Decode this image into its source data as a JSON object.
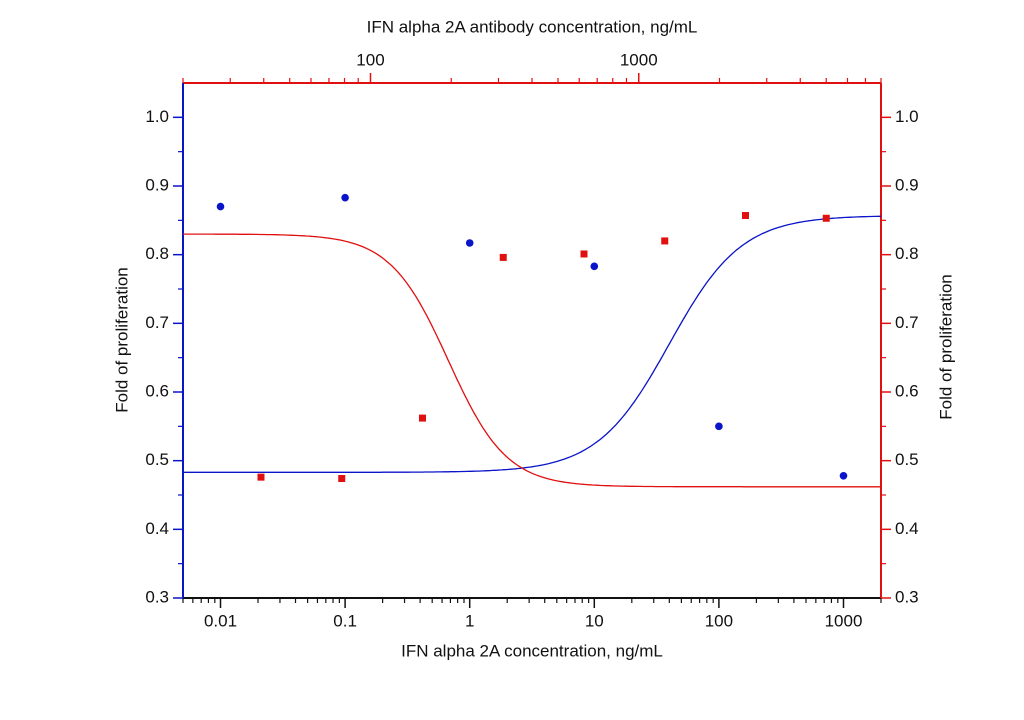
{
  "chart_data": {
    "type": "scatter",
    "xlabel": "IFN alpha 2A concentration, ng/mL",
    "x2label": "IFN alpha 2A antibody concentration, ng/mL",
    "ylabel": "Fold of proliferation",
    "y2label": "Fold of proliferation",
    "xscale": "log",
    "x2scale": "log",
    "xlim": [
      0.005,
      2000
    ],
    "xticks": [
      0.01,
      0.1,
      1,
      10,
      100,
      1000
    ],
    "x2lim": [
      20,
      8000
    ],
    "x2ticks": [
      100,
      1000
    ],
    "ylim": [
      0.3,
      1.05
    ],
    "yticks": [
      0.3,
      0.4,
      0.5,
      0.6,
      0.7,
      0.8,
      0.9,
      {
        "value": 1,
        "label": "1.0"
      }
    ],
    "y2lim": [
      0.3,
      1.05
    ],
    "y2ticks": [
      0.3,
      0.4,
      0.5,
      0.6,
      0.7,
      0.8,
      0.9,
      {
        "value": 1,
        "label": "1.0"
      }
    ],
    "series": [
      {
        "color": "#0a14c8",
        "marker": "circle",
        "x": [
          0.01,
          0.1,
          1,
          10,
          100,
          1000
        ],
        "values": [
          0.87,
          0.883,
          0.817,
          0.783,
          0.55,
          0.478
        ],
        "fit": {
          "bottom": 0.483,
          "top": 0.857,
          "ec50": 40,
          "hill": -1.5
        }
      },
      {
        "color": "#e01010",
        "marker": "square",
        "axis": "y2",
        "xaxis": "x2",
        "x": [
          39.06,
          78.13,
          156.25,
          312.5,
          625,
          1250,
          2500,
          5000
        ],
        "values": [
          0.476,
          0.474,
          0.562,
          0.796,
          0.801,
          0.82,
          0.857,
          0.853
        ],
        "fit": {
          "bottom": 0.462,
          "top": 0.83,
          "ec50": 195,
          "hill": 4
        }
      }
    ]
  }
}
